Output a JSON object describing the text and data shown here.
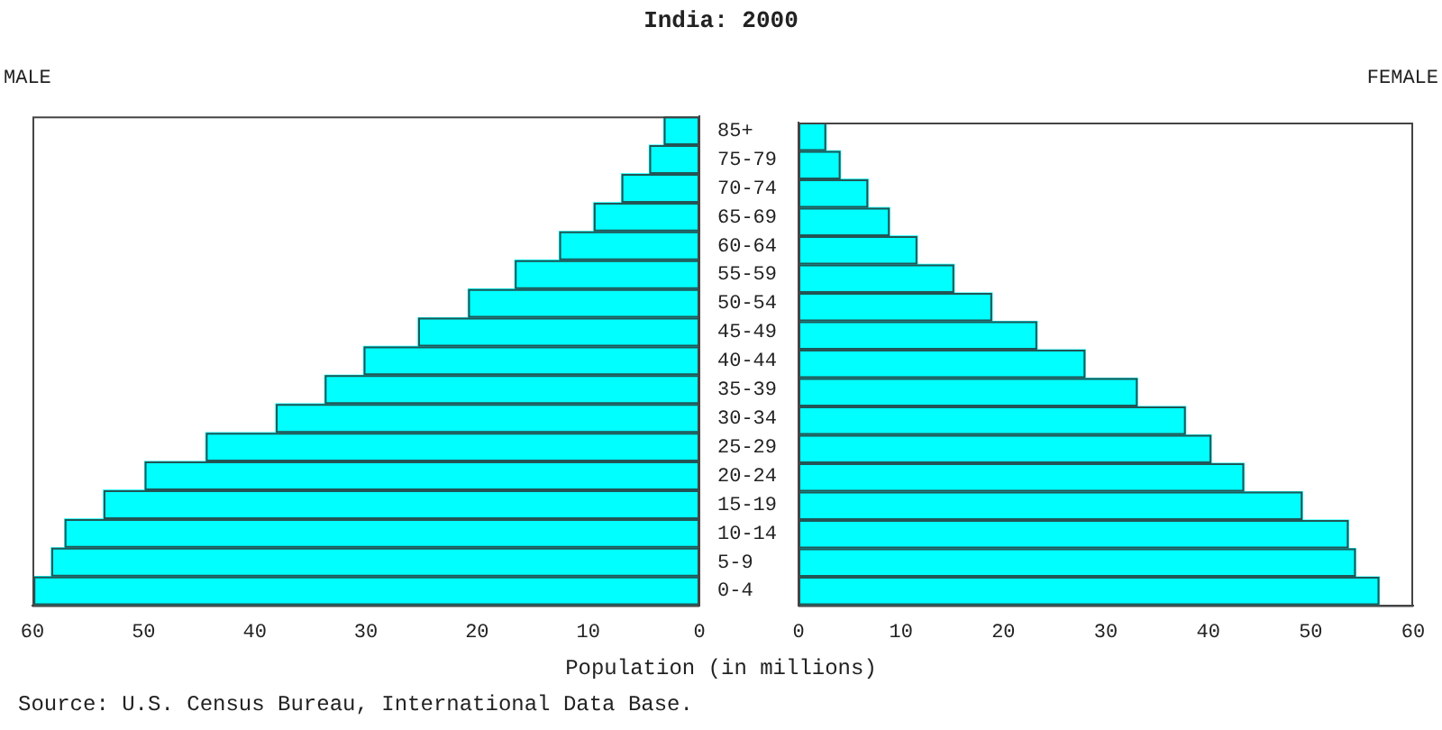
{
  "chart_data": [
    {
      "type": "bar",
      "title": "India: 2000",
      "subtitle": "MALE",
      "xlabel": "Population (in millions)",
      "annotations": [
        "Source: U.S. Census Bureau, International Data Base."
      ],
      "orientation": "horizontal",
      "categories": [
        "85+",
        "75-79",
        "70-74",
        "65-69",
        "60-64",
        "55-59",
        "50-54",
        "45-49",
        "40-44",
        "35-39",
        "30-34",
        "25-29",
        "20-24",
        "15-19",
        "10-14",
        "5-9",
        "0-4"
      ],
      "values": [
        3.2,
        4.5,
        7.0,
        9.5,
        12.6,
        16.6,
        20.8,
        25.3,
        30.2,
        33.7,
        38.1,
        44.4,
        49.9,
        53.6,
        57.1,
        58.3,
        59.9
      ],
      "color": "#00ffff",
      "xlim": [
        60,
        0
      ],
      "xticks": [
        60,
        50,
        40,
        30,
        20,
        10,
        0
      ]
    },
    {
      "type": "bar",
      "subtitle": "FEMALE",
      "orientation": "horizontal",
      "tick_labels": "x",
      "values": [
        2.7,
        4.1,
        6.8,
        8.9,
        11.6,
        15.2,
        18.9,
        23.3,
        28.0,
        33.1,
        37.8,
        40.3,
        43.5,
        49.2,
        53.7,
        54.4,
        56.7
      ],
      "color": "#00ffff",
      "xlim": [
        0,
        60
      ],
      "xticks": [
        0,
        10,
        20,
        30,
        40,
        50,
        60
      ]
    }
  ]
}
